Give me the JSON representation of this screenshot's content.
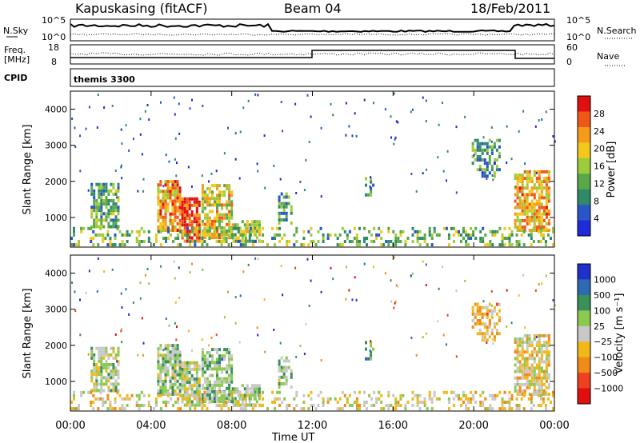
{
  "header": {
    "station": "Kapuskasing (fitACF)",
    "beam": "Beam 04",
    "date": "18/Feb/2011"
  },
  "noise_panel": {
    "left_label": "N.Sky",
    "right_label": "N.Search",
    "left_ticks": [
      "10^5",
      "10^0"
    ],
    "right_ticks": [
      "10^5",
      "10^0"
    ]
  },
  "freq_panel": {
    "left_label_1": "Freq.",
    "left_label_2": "[MHz]",
    "right_label": "Nave",
    "left_ticks": [
      "18",
      "8"
    ],
    "right_ticks": [
      "60",
      "0"
    ]
  },
  "cpid_panel": {
    "label": "CPID",
    "program": "themis 3300"
  },
  "colors": {
    "power_scale": [
      "#1f2bd8",
      "#2a55c8",
      "#2f8a6a",
      "#5aa84a",
      "#9ccc3c",
      "#f2c81a",
      "#f59a1a",
      "#f0581a",
      "#e01010"
    ],
    "velocity_scale": [
      "#2030c8",
      "#2f6ab0",
      "#3a8f5a",
      "#8dc850",
      "#c8c8c8",
      "#f2b81a",
      "#f08a18",
      "#ef4020",
      "#e01010"
    ]
  },
  "chart_data": [
    {
      "type": "heatmap",
      "title": "Power",
      "ylabel": "Slant Range [km]",
      "xlabel": "",
      "x_ticks": [
        "00:00",
        "04:00",
        "08:00",
        "12:00",
        "16:00",
        "20:00",
        "00:00"
      ],
      "y_ticks": [
        1000,
        2000,
        3000,
        4000
      ],
      "ylim": [
        180,
        4500
      ],
      "xlim_hours": [
        0,
        24
      ],
      "colorbar_label": "Power [dB]",
      "colorbar_ticks": [
        4,
        8,
        12,
        16,
        20,
        24,
        28
      ],
      "colorbar_range": [
        0,
        32
      ]
    },
    {
      "type": "heatmap",
      "title": "Velocity",
      "ylabel": "Slant Range [km]",
      "xlabel": "Time UT",
      "x_ticks": [
        "00:00",
        "04:00",
        "08:00",
        "12:00",
        "16:00",
        "20:00",
        "00:00"
      ],
      "y_ticks": [
        1000,
        2000,
        3000,
        4000
      ],
      "ylim": [
        180,
        4500
      ],
      "xlim_hours": [
        0,
        24
      ],
      "colorbar_label": "Velocity [m s⁻¹]",
      "colorbar_ticks": [
        "1000",
        "500",
        "100",
        "25",
        "−25",
        "−100",
        "−500",
        "−1000"
      ]
    }
  ]
}
